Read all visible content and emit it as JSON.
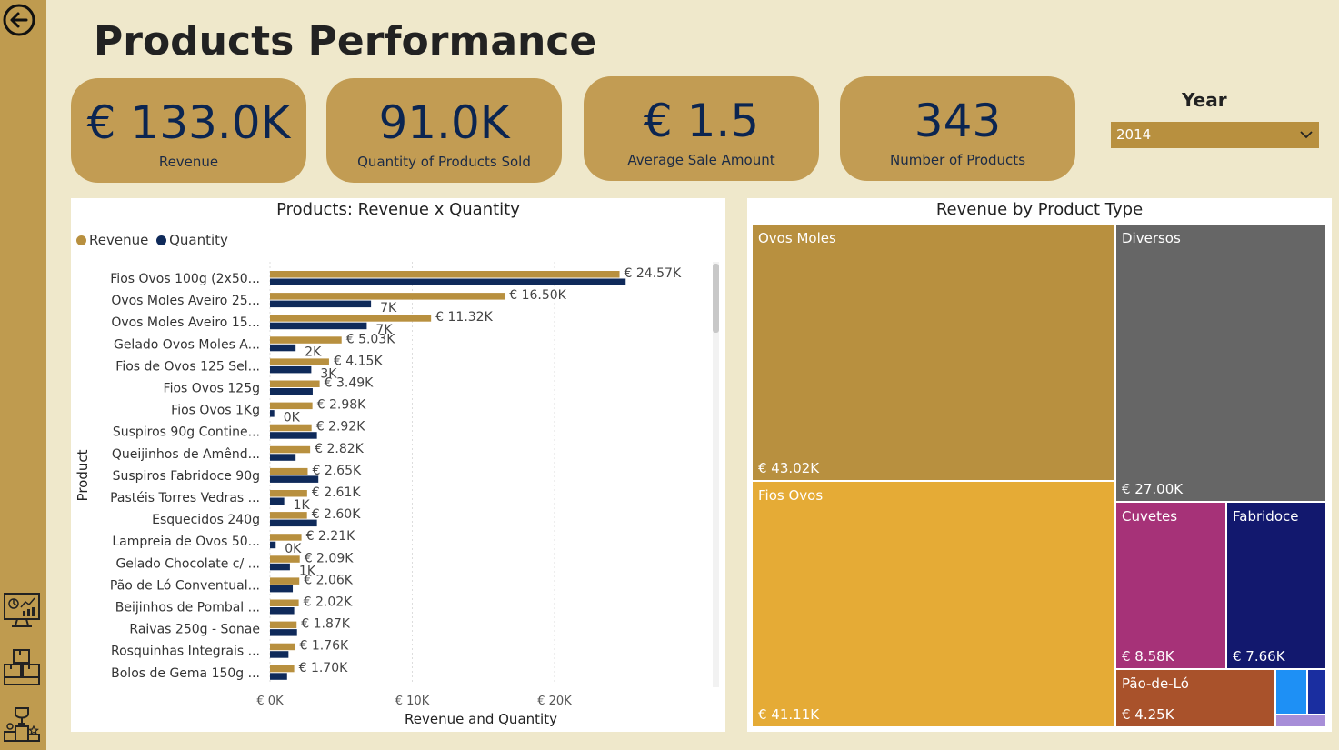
{
  "page_title": "Products Performance",
  "kpis": [
    {
      "value": "€ 133.0K",
      "label": "Revenue"
    },
    {
      "value": "91.0K",
      "label": "Quantity of Products Sold"
    },
    {
      "value": "€ 1.5",
      "label": "Average Sale Amount"
    },
    {
      "value": "343",
      "label": "Number of Products"
    }
  ],
  "year_filter": {
    "label": "Year",
    "selected": "2014"
  },
  "colors": {
    "revenue": "#b8903f",
    "quantity": "#0f2a5a",
    "sidebar": "#bf9b4f",
    "background": "#efe8cb"
  },
  "sidebar_icons": [
    "back-arrow-icon",
    "dashboard-monitor-icon",
    "boxes-icon",
    "podium-trophy-icon"
  ],
  "chart_data": [
    {
      "type": "bar",
      "orientation": "horizontal",
      "title": "Products: Revenue x Quantity",
      "xlabel": "Revenue and Quantity",
      "ylabel": "Product",
      "xlim": [
        0,
        26000
      ],
      "xticks": [
        "€ 0K",
        "€ 10K",
        "€ 20K"
      ],
      "tick_values": [
        0,
        10000,
        20000
      ],
      "grid": true,
      "legend_position": "top-left",
      "categories": [
        "Fios Ovos 100g (2x50...",
        "Ovos Moles Aveiro 25...",
        "Ovos Moles Aveiro 15...",
        "Gelado Ovos Moles A...",
        "Fios de Ovos 125 Sel...",
        "Fios Ovos 125g",
        "Fios Ovos 1Kg",
        "Suspiros 90g Contine...",
        "Queijinhos de Amênd...",
        "Suspiros Fabridoce 90g",
        "Pastéis Torres Vedras ...",
        "Esquecidos 240g",
        "Lampreia de Ovos 50...",
        "Gelado Chocolate c/ ...",
        "Pão de Ló Conventual...",
        "Beijinhos de Pombal ...",
        "Raivas 250g - Sonae",
        "Rosquinhas Integrais ...",
        "Bolos de Gema 150g ..."
      ],
      "series": [
        {
          "name": "Revenue",
          "values": [
            24570,
            16500,
            11320,
            5030,
            4150,
            3490,
            2980,
            2920,
            2820,
            2650,
            2610,
            2600,
            2210,
            2090,
            2060,
            2020,
            1870,
            1760,
            1700
          ],
          "labels": [
            "€ 24.57K",
            "€ 16.50K",
            "€ 11.32K",
            "€ 5.03K",
            "€ 4.15K",
            "€ 3.49K",
            "€ 2.98K",
            "€ 2.92K",
            "€ 2.82K",
            "€ 2.65K",
            "€ 2.61K",
            "€ 2.60K",
            "€ 2.21K",
            "€ 2.09K",
            "€ 2.06K",
            "€ 2.02K",
            "€ 1.87K",
            "€ 1.76K",
            "€ 1.70K"
          ]
        },
        {
          "name": "Quantity",
          "values": [
            25000,
            7100,
            6800,
            1800,
            2900,
            3000,
            300,
            3300,
            1800,
            3400,
            1000,
            3300,
            400,
            1400,
            1600,
            1700,
            1900,
            1300,
            1200
          ],
          "labels": [
            "",
            "7K",
            "7K",
            "2K",
            "3K",
            "",
            "0K",
            "",
            "",
            "",
            "1K",
            "",
            "0K",
            "1K",
            "",
            "",
            "",
            "",
            ""
          ]
        }
      ]
    },
    {
      "type": "treemap",
      "title": "Revenue by Product Type",
      "items": [
        {
          "name": "Ovos Moles",
          "value": 43020,
          "label": "€ 43.02K",
          "color": "#b8903f"
        },
        {
          "name": "Fios Ovos",
          "value": 41110,
          "label": "€ 41.11K",
          "color": "#e5ab36"
        },
        {
          "name": "Diversos",
          "value": 27000,
          "label": "€ 27.00K",
          "color": "#666666"
        },
        {
          "name": "Cuvetes",
          "value": 8580,
          "label": "€ 8.58K",
          "color": "#a63278"
        },
        {
          "name": "Fabridoce",
          "value": 7660,
          "label": "€ 7.66K",
          "color": "#12186e"
        },
        {
          "name": "Pão-de-Ló",
          "value": 4250,
          "label": "€ 4.25K",
          "color": "#a9522b"
        },
        {
          "name": "",
          "value": 600,
          "label": "",
          "color": "#1e90f5"
        },
        {
          "name": "",
          "value": 300,
          "label": "",
          "color": "#1a2ea0"
        },
        {
          "name": "",
          "value": 200,
          "label": "",
          "color": "#a78ed8"
        }
      ]
    }
  ]
}
